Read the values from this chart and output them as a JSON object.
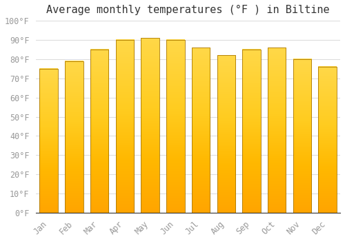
{
  "title": "Average monthly temperatures (°F ) in Biltine",
  "months": [
    "Jan",
    "Feb",
    "Mar",
    "Apr",
    "May",
    "Jun",
    "Jul",
    "Aug",
    "Sep",
    "Oct",
    "Nov",
    "Dec"
  ],
  "values": [
    75,
    79,
    85,
    90,
    91,
    90,
    86,
    82,
    85,
    86,
    80,
    76
  ],
  "bar_color_bottom": "#FFA500",
  "bar_color_top": "#FFD040",
  "bar_color_center": "#FFD040",
  "bar_edge_color": "#CC8800",
  "background_color": "#FFFFFF",
  "grid_color": "#DDDDDD",
  "ylim": [
    0,
    100
  ],
  "yticks": [
    0,
    10,
    20,
    30,
    40,
    50,
    60,
    70,
    80,
    90,
    100
  ],
  "ytick_labels": [
    "0°F",
    "10°F",
    "20°F",
    "30°F",
    "40°F",
    "50°F",
    "60°F",
    "70°F",
    "80°F",
    "90°F",
    "100°F"
  ],
  "title_fontsize": 11,
  "tick_fontsize": 8.5,
  "tick_color": "#999999",
  "font_family": "monospace",
  "figsize": [
    5.0,
    3.5
  ],
  "dpi": 100
}
